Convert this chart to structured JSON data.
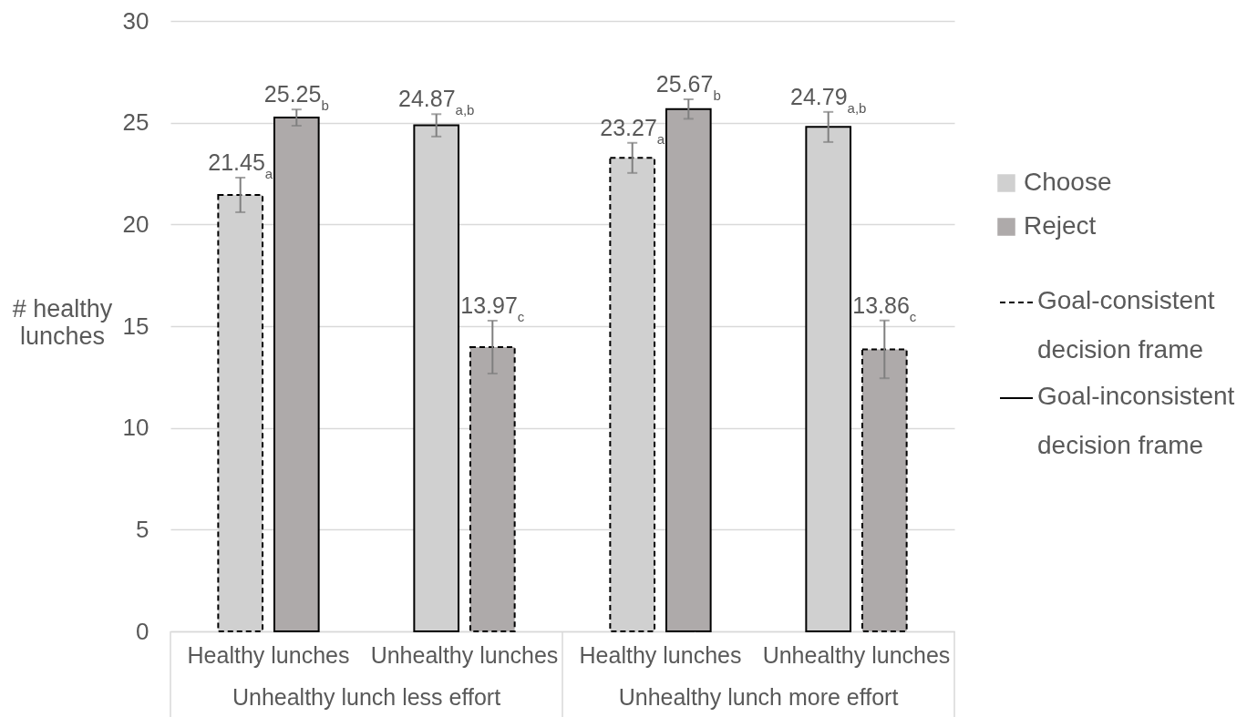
{
  "chart_data": {
    "type": "bar",
    "ylabel": "# healthy lunches",
    "categories": [
      "Healthy lunches",
      "Unhealthy lunches",
      "Healthy lunches",
      "Unhealthy lunches"
    ],
    "series": [
      {
        "name": "Choose",
        "color": "#d0d0d0",
        "values": [
          21.45,
          24.87,
          23.27,
          24.79
        ],
        "errors": [
          0.85,
          0.55,
          0.74,
          0.74
        ],
        "value_labels": [
          "21.45$_{a}$",
          "24.87$_{a,b}$",
          "23.27$_{a}$",
          "24.79$_{a,b}$"
        ],
        "line_style": [
          "dashed",
          "solid",
          "dashed",
          "solid"
        ]
      },
      {
        "name": "Reject",
        "color": "#aeaaaa",
        "values": [
          25.25,
          13.97,
          25.67,
          13.86
        ],
        "errors": [
          0.4,
          1.3,
          0.48,
          1.42
        ],
        "value_labels": [
          "25.25$_{b}$",
          "13.97$_{c}$",
          "25.67$_{b}$",
          "13.86$_{c}$"
        ],
        "line_style": [
          "solid",
          "dashed",
          "solid",
          "dashed"
        ]
      },
      {
        "name": "Goal-consistent decision frame",
        "type": "line",
        "color": "#000000",
        "line_style": "dashed",
        "values": [
          null,
          null,
          null,
          null
        ]
      },
      {
        "name": "Goal-inconsistent decision frame",
        "type": "line",
        "color": "#000000",
        "line_style": "solid",
        "values": [
          null,
          null,
          null,
          null
        ]
      }
    ],
    "ylim": [
      0,
      30
    ],
    "yticks": [
      0,
      5,
      10,
      15,
      20,
      25,
      30
    ],
    "grid": "y",
    "legend": "right",
    "annotations": [
      "Unhealthy lunch less effort",
      "Unhealthy lunch more effort"
    ]
  }
}
